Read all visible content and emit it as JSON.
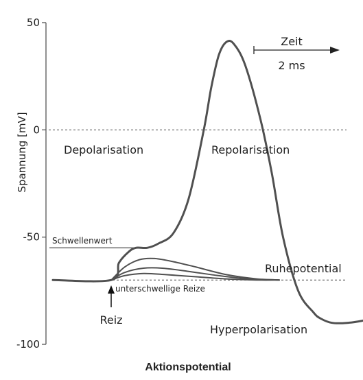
{
  "chart_data": {
    "type": "line",
    "title": "Aktionspotential",
    "ylabel": "Spannung [mV]",
    "ylim": [
      -100,
      50
    ],
    "yticks": [
      50,
      0,
      -50,
      -100
    ],
    "scale_bar": {
      "label": "Zeit",
      "duration_label": "2 ms"
    },
    "series": [
      {
        "x": [
          0,
          1.55,
          1.75,
          2.0,
          2.2,
          2.5,
          2.8,
          3.2,
          3.6,
          4.0,
          4.2,
          4.4,
          4.6,
          4.8,
          5.1,
          5.5,
          5.8,
          6.1,
          6.5,
          6.9,
          7.1,
          7.4,
          7.8,
          8.2,
          8.7,
          9.2,
          9.6,
          10.1,
          10.5,
          11.0,
          11.4
        ],
        "y": [
          -70,
          -70,
          -62,
          -57,
          -55,
          -55,
          -53,
          -48,
          -32,
          0,
          20,
          35,
          41,
          40,
          30,
          5,
          -20,
          -50,
          -75,
          -85,
          -88,
          -90,
          -90,
          -89,
          -87,
          -83,
          -78,
          -73,
          -70.5,
          -70,
          -70
        ]
      },
      {
        "x": [
          1.55,
          1.9,
          2.3,
          2.7,
          3.2,
          3.8,
          4.6,
          5.4,
          6.0
        ],
        "y": [
          -70,
          -64,
          -60.5,
          -60,
          -61.5,
          -64,
          -67.5,
          -69.5,
          -70
        ]
      },
      {
        "x": [
          1.55,
          1.9,
          2.4,
          2.9,
          3.6,
          4.4,
          5.2,
          6.0
        ],
        "y": [
          -70,
          -66.5,
          -64.5,
          -64.5,
          -66,
          -68,
          -69.5,
          -70
        ]
      },
      {
        "x": [
          1.55,
          1.9,
          2.4,
          3.0,
          3.8,
          4.6,
          5.4,
          6.0
        ],
        "y": [
          -70,
          -68,
          -67,
          -67.5,
          -68.5,
          -69.5,
          -70,
          -70
        ]
      }
    ],
    "reference_lines": [
      {
        "y": 0,
        "style": "dotted"
      },
      {
        "y": -70,
        "style": "dotted",
        "label": "Ruhepotential"
      },
      {
        "y": -55,
        "style": "solid",
        "label": "Schwellenwert"
      }
    ],
    "annotations": {
      "depolarisation": "Depolarisation",
      "repolarisation": "Repolarisation",
      "hyperpolarisation": "Hyperpolarisation",
      "ruhepotential": "Ruhepotential",
      "schwellenwert": "Schwellenwert",
      "unterschwellig": "unterschwellige Reize",
      "reiz": "Reiz"
    }
  }
}
